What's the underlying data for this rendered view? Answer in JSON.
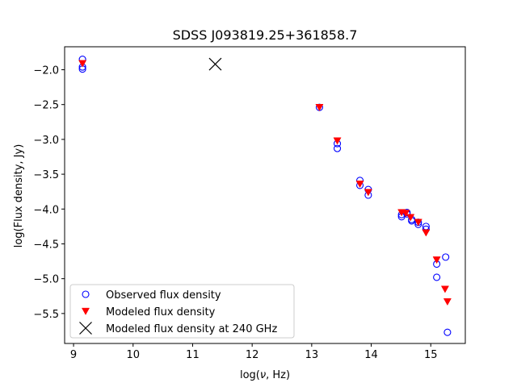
{
  "chart_data": {
    "type": "scatter",
    "title": "SDSS J093819.25+361858.7",
    "xlabel_prefix": "log(",
    "xlabel_symbol": "ν",
    "xlabel_suffix": ", Hz)",
    "ylabel": "log(Flux density, Jy)",
    "xlim": [
      8.85,
      15.58
    ],
    "ylim": [
      -5.93,
      -1.67
    ],
    "xticks": [
      9,
      10,
      11,
      12,
      13,
      14,
      15
    ],
    "yticks": [
      -2.0,
      -2.5,
      -3.0,
      -3.5,
      -4.0,
      -4.5,
      -5.0,
      -5.5
    ],
    "xtick_labels": [
      "9",
      "10",
      "11",
      "12",
      "13",
      "14",
      "15"
    ],
    "ytick_labels": [
      "−2.0",
      "−2.5",
      "−3.0",
      "−3.5",
      "−4.0",
      "−4.5",
      "−5.0",
      "−5.5"
    ],
    "legend_position": "lower-left",
    "series": [
      {
        "name": "Observed flux density",
        "marker": "open-circle",
        "color": "#0000ff",
        "points": [
          [
            9.15,
            -1.85
          ],
          [
            9.15,
            -1.96
          ],
          [
            9.15,
            -1.99
          ],
          [
            13.13,
            -2.54
          ],
          [
            13.43,
            -3.06
          ],
          [
            13.43,
            -3.13
          ],
          [
            13.81,
            -3.59
          ],
          [
            13.81,
            -3.66
          ],
          [
            13.95,
            -3.72
          ],
          [
            13.95,
            -3.8
          ],
          [
            14.51,
            -4.08
          ],
          [
            14.51,
            -4.11
          ],
          [
            14.6,
            -4.05
          ],
          [
            14.6,
            -4.07
          ],
          [
            14.68,
            -4.15
          ],
          [
            14.68,
            -4.17
          ],
          [
            14.79,
            -4.19
          ],
          [
            14.79,
            -4.22
          ],
          [
            14.92,
            -4.25
          ],
          [
            14.92,
            -4.29
          ],
          [
            15.1,
            -4.79
          ],
          [
            15.1,
            -4.98
          ],
          [
            15.25,
            -4.69
          ],
          [
            15.28,
            -5.77
          ]
        ]
      },
      {
        "name": "Modeled flux density",
        "marker": "triangle-down",
        "color": "#ff0000",
        "points": [
          [
            9.15,
            -1.91
          ],
          [
            13.13,
            -2.54
          ],
          [
            13.43,
            -3.02
          ],
          [
            13.81,
            -3.64
          ],
          [
            13.95,
            -3.76
          ],
          [
            14.51,
            -4.05
          ],
          [
            14.58,
            -4.06
          ],
          [
            14.66,
            -4.12
          ],
          [
            14.79,
            -4.19
          ],
          [
            14.92,
            -4.34
          ],
          [
            15.1,
            -4.73
          ],
          [
            15.24,
            -5.15
          ],
          [
            15.28,
            -5.33
          ]
        ]
      },
      {
        "name": "Modeled flux density at 240 GHz",
        "marker": "x",
        "color": "#000000",
        "points": [
          [
            11.38,
            -1.92
          ]
        ]
      }
    ]
  }
}
